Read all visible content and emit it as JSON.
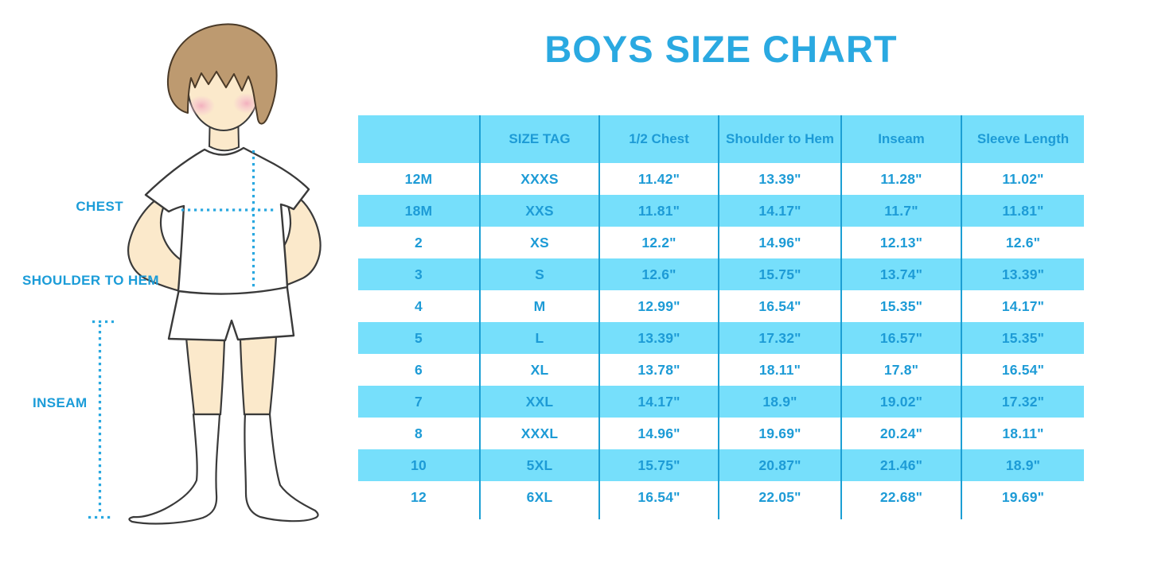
{
  "title": "BOYS SIZE CHART",
  "colors": {
    "accent_blue": "#29ABE2",
    "table_text": "#1D9BD6",
    "cell_fill": "#76DFFB",
    "divider": "#1C9FD4",
    "skin": "#FBE9CB",
    "hair": "#BD9A70",
    "blush": "#F2A9BC"
  },
  "figure": {
    "labels": {
      "chest": "CHEST",
      "shoulder_to_hem": "SHOULDER TO HEM",
      "inseam": "INSEAM"
    }
  },
  "chart_data": {
    "type": "table",
    "title": "BOYS SIZE CHART",
    "columns": [
      "",
      "SIZE TAG",
      "1/2 Chest",
      "Shoulder to Hem",
      "Inseam",
      "Sleeve Length"
    ],
    "rows": [
      [
        "12M",
        "XXXS",
        "11.42\"",
        "13.39\"",
        "11.28\"",
        "11.02\""
      ],
      [
        "18M",
        "XXS",
        "11.81\"",
        "14.17\"",
        "11.7\"",
        "11.81\""
      ],
      [
        "2",
        "XS",
        "12.2\"",
        "14.96\"",
        "12.13\"",
        "12.6\""
      ],
      [
        "3",
        "S",
        "12.6\"",
        "15.75\"",
        "13.74\"",
        "13.39\""
      ],
      [
        "4",
        "M",
        "12.99\"",
        "16.54\"",
        "15.35\"",
        "14.17\""
      ],
      [
        "5",
        "L",
        "13.39\"",
        "17.32\"",
        "16.57\"",
        "15.35\""
      ],
      [
        "6",
        "XL",
        "13.78\"",
        "18.11\"",
        "17.8\"",
        "16.54\""
      ],
      [
        "7",
        "XXL",
        "14.17\"",
        "18.9\"",
        "19.02\"",
        "17.32\""
      ],
      [
        "8",
        "XXXL",
        "14.96\"",
        "19.69\"",
        "20.24\"",
        "18.11\""
      ],
      [
        "10",
        "5XL",
        "15.75\"",
        "20.87\"",
        "21.46\"",
        "18.9\""
      ],
      [
        "12",
        "6XL",
        "16.54\"",
        "22.05\"",
        "22.68\"",
        "19.69\""
      ]
    ],
    "layout": {
      "striped_rows": true,
      "stripe_color": "#76DFFB",
      "grid": "vertical-dividers-only"
    }
  }
}
